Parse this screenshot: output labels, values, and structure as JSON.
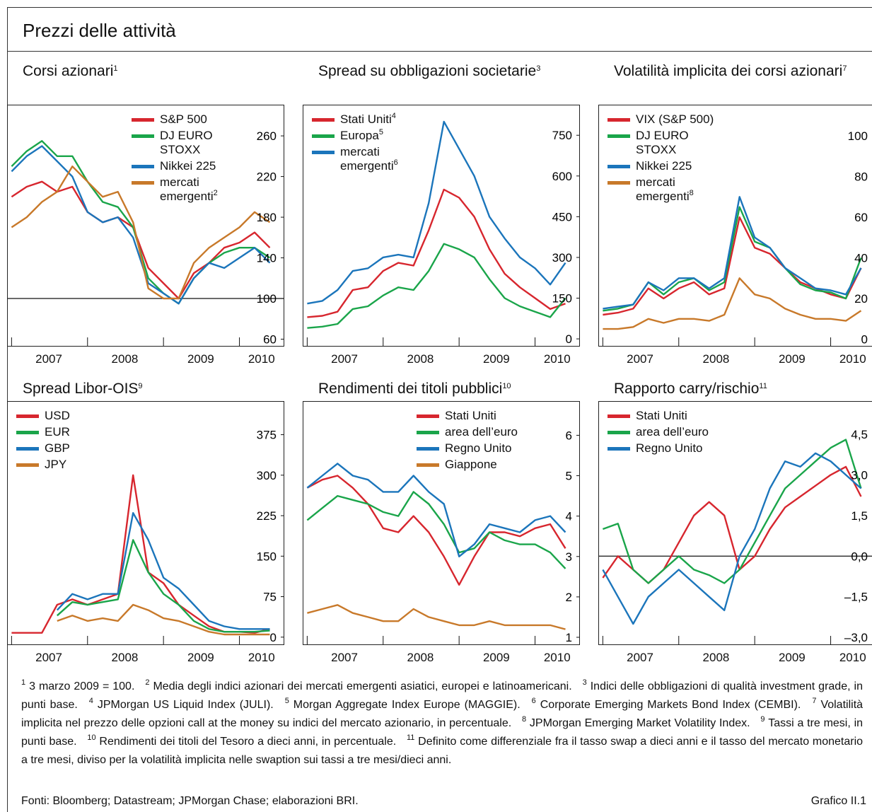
{
  "header": {
    "title": "Prezzi delle attività"
  },
  "chart_data": [
    {
      "type": "line",
      "title": "Corsi azionari",
      "title_ref": "1",
      "legend": "top-center",
      "x": [
        2007,
        2007.2,
        2007.4,
        2007.6,
        2007.8,
        2008,
        2008.2,
        2008.4,
        2008.6,
        2008.8,
        2009,
        2009.2,
        2009.4,
        2009.6,
        2009.8,
        2010,
        2010.2,
        2010.4
      ],
      "xlim": [
        2006.95,
        2010.6
      ],
      "xticks": [
        2007,
        2008,
        2009,
        2010
      ],
      "ylim": [
        52,
        290
      ],
      "yticks": [
        60,
        100,
        140,
        180,
        220,
        260
      ],
      "hline": 100,
      "series": [
        {
          "name": "S&P 500",
          "color": "#d7262e",
          "values": [
            200,
            210,
            215,
            205,
            210,
            185,
            175,
            180,
            170,
            130,
            115,
            100,
            125,
            135,
            150,
            155,
            165,
            150
          ]
        },
        {
          "name": "DJ EURO STOXX",
          "color": "#1aa54a",
          "values": [
            230,
            245,
            255,
            240,
            240,
            215,
            195,
            190,
            170,
            120,
            105,
            95,
            120,
            135,
            145,
            150,
            150,
            140
          ]
        },
        {
          "name": "Nikkei 225",
          "color": "#1b75bb",
          "values": [
            225,
            240,
            250,
            235,
            220,
            185,
            175,
            180,
            160,
            115,
            105,
            95,
            120,
            135,
            130,
            140,
            150,
            135
          ]
        },
        {
          "name": "mercati emergenti",
          "ref": "2",
          "color": "#c8792a",
          "values": [
            170,
            180,
            195,
            205,
            230,
            215,
            200,
            205,
            175,
            110,
            100,
            100,
            135,
            150,
            160,
            170,
            185,
            175
          ]
        }
      ]
    },
    {
      "type": "line",
      "title": "Spread su obbligazioni societarie",
      "title_ref": "3",
      "legend": "top-left",
      "x": [
        2007,
        2007.2,
        2007.4,
        2007.6,
        2007.8,
        2008,
        2008.2,
        2008.4,
        2008.6,
        2008.8,
        2009,
        2009.2,
        2009.4,
        2009.6,
        2009.8,
        2010,
        2010.2,
        2010.4
      ],
      "xlim": [
        2006.95,
        2010.6
      ],
      "xticks": [
        2007,
        2008,
        2009,
        2010
      ],
      "ylim": [
        -31,
        860
      ],
      "yticks": [
        0,
        150,
        300,
        450,
        600,
        750
      ],
      "series": [
        {
          "name": "Stati Uniti",
          "ref": "4",
          "color": "#d7262e",
          "values": [
            80,
            85,
            100,
            180,
            190,
            250,
            280,
            270,
            400,
            550,
            520,
            450,
            330,
            240,
            190,
            150,
            110,
            130
          ]
        },
        {
          "name": "Europa",
          "ref": "5",
          "color": "#1aa54a",
          "values": [
            40,
            45,
            55,
            110,
            120,
            160,
            190,
            180,
            250,
            350,
            330,
            300,
            220,
            150,
            120,
            100,
            80,
            150
          ]
        },
        {
          "name": "mercati emergenti",
          "ref": "6",
          "color": "#1b75bb",
          "values": [
            130,
            140,
            180,
            250,
            260,
            300,
            310,
            300,
            500,
            800,
            700,
            600,
            450,
            370,
            300,
            260,
            200,
            280
          ]
        }
      ]
    },
    {
      "type": "line",
      "title": "Volatilità implicita dei corsi azionari",
      "title_ref": "7",
      "legend": "top-left",
      "x": [
        2007,
        2007.2,
        2007.4,
        2007.6,
        2007.8,
        2008,
        2008.2,
        2008.4,
        2008.6,
        2008.8,
        2009,
        2009.2,
        2009.4,
        2009.6,
        2009.8,
        2010,
        2010.2,
        2010.4
      ],
      "xlim": [
        2006.95,
        2010.6
      ],
      "xticks": [
        2007,
        2008,
        2009,
        2010
      ],
      "ylim": [
        -4,
        115
      ],
      "yticks": [
        0,
        20,
        40,
        60,
        80,
        100
      ],
      "series": [
        {
          "name": "VIX (S&P 500)",
          "color": "#d7262e",
          "values": [
            12,
            13,
            15,
            25,
            20,
            25,
            28,
            22,
            25,
            60,
            45,
            42,
            35,
            28,
            25,
            22,
            20,
            35
          ]
        },
        {
          "name": "DJ EURO STOXX",
          "color": "#1aa54a",
          "values": [
            14,
            15,
            17,
            28,
            22,
            28,
            30,
            24,
            28,
            65,
            48,
            45,
            35,
            27,
            24,
            23,
            20,
            40
          ]
        },
        {
          "name": "Nikkei 225",
          "color": "#1b75bb",
          "values": [
            15,
            16,
            17,
            28,
            24,
            30,
            30,
            25,
            30,
            70,
            50,
            45,
            35,
            30,
            25,
            24,
            22,
            35
          ]
        },
        {
          "name": "mercati emergenti",
          "ref": "8",
          "color": "#c8792a",
          "values": [
            5,
            5,
            6,
            10,
            8,
            10,
            10,
            9,
            12,
            30,
            22,
            20,
            15,
            12,
            10,
            10,
            9,
            14
          ]
        }
      ]
    },
    {
      "type": "line",
      "title": "Spread Libor-OIS",
      "title_ref": "9",
      "legend": "top-left",
      "x": [
        2007,
        2007.2,
        2007.4,
        2007.6,
        2007.8,
        2008,
        2008.2,
        2008.4,
        2008.6,
        2008.8,
        2009,
        2009.2,
        2009.4,
        2009.6,
        2009.8,
        2010,
        2010.2,
        2010.4
      ],
      "xlim": [
        2006.95,
        2010.6
      ],
      "xticks": [
        2007,
        2008,
        2009,
        2010
      ],
      "ylim": [
        -16,
        436
      ],
      "yticks": [
        0,
        75,
        150,
        225,
        300,
        375
      ],
      "series": [
        {
          "name": "USD",
          "color": "#d7262e",
          "values": [
            8,
            8,
            8,
            60,
            70,
            60,
            70,
            80,
            300,
            120,
            100,
            60,
            40,
            20,
            10,
            10,
            8,
            15
          ]
        },
        {
          "name": "EUR",
          "color": "#1aa54a",
          "values": [
            null,
            null,
            null,
            40,
            65,
            60,
            65,
            70,
            180,
            120,
            80,
            60,
            30,
            15,
            10,
            10,
            10,
            12
          ]
        },
        {
          "name": "GBP",
          "color": "#1b75bb",
          "values": [
            null,
            null,
            null,
            50,
            80,
            70,
            80,
            80,
            230,
            180,
            110,
            90,
            60,
            30,
            20,
            15,
            15,
            15
          ]
        },
        {
          "name": "JPY",
          "color": "#c8792a",
          "values": [
            null,
            null,
            null,
            30,
            40,
            30,
            35,
            30,
            60,
            50,
            35,
            30,
            20,
            10,
            5,
            5,
            5,
            5
          ]
        }
      ]
    },
    {
      "type": "line",
      "title": "Rendimenti dei titoli pubblici",
      "title_ref": "10",
      "legend": "top-right",
      "x": [
        2007,
        2007.2,
        2007.4,
        2007.6,
        2007.8,
        2008,
        2008.2,
        2008.4,
        2008.6,
        2008.8,
        2009,
        2009.2,
        2009.4,
        2009.6,
        2009.8,
        2010,
        2010.2,
        2010.4
      ],
      "xlim": [
        2006.95,
        2010.6
      ],
      "xticks": [
        2007,
        2008,
        2009,
        2010
      ],
      "ylim": [
        0.79,
        6.83
      ],
      "yticks": [
        1,
        2,
        3,
        4,
        5,
        6
      ],
      "series": [
        {
          "name": "Stati Uniti",
          "color": "#d7262e",
          "values": [
            4.7,
            4.9,
            5.0,
            4.7,
            4.3,
            3.7,
            3.6,
            4.0,
            3.6,
            3.0,
            2.3,
            3.0,
            3.6,
            3.6,
            3.5,
            3.7,
            3.8,
            3.2
          ]
        },
        {
          "name": "area dell’euro",
          "color": "#1aa54a",
          "values": [
            3.9,
            4.2,
            4.5,
            4.4,
            4.3,
            4.1,
            4.0,
            4.6,
            4.3,
            3.8,
            3.1,
            3.2,
            3.6,
            3.4,
            3.3,
            3.3,
            3.1,
            2.7
          ]
        },
        {
          "name": "Regno Unito",
          "color": "#1b75bb",
          "values": [
            4.7,
            5.0,
            5.3,
            5.0,
            4.9,
            4.6,
            4.6,
            5.0,
            4.6,
            4.3,
            3.0,
            3.3,
            3.8,
            3.7,
            3.6,
            3.9,
            4.0,
            3.6
          ]
        },
        {
          "name": "Giappone",
          "color": "#c8792a",
          "values": [
            1.6,
            1.7,
            1.8,
            1.6,
            1.5,
            1.4,
            1.4,
            1.7,
            1.5,
            1.4,
            1.3,
            1.3,
            1.4,
            1.3,
            1.3,
            1.3,
            1.3,
            1.2
          ]
        }
      ]
    },
    {
      "type": "line",
      "title": "Rapporto carry/rischio",
      "title_ref": "11",
      "legend": "top-left",
      "x": [
        2007,
        2007.2,
        2007.4,
        2007.6,
        2007.8,
        2008,
        2008.2,
        2008.4,
        2008.6,
        2008.8,
        2009,
        2009.2,
        2009.4,
        2009.6,
        2009.8,
        2010,
        2010.2,
        2010.4
      ],
      "xlim": [
        2006.95,
        2010.6
      ],
      "xticks": [
        2007,
        2008,
        2009,
        2010
      ],
      "ylim": [
        -3.31,
        5.7
      ],
      "hline": 0,
      "yticks": [
        {
          "value": -3,
          "label": "–3,0"
        },
        {
          "value": -1.5,
          "label": "–1,5"
        },
        {
          "value": 0,
          "label": "0,0"
        },
        {
          "value": 1.5,
          "label": "1,5"
        },
        {
          "value": 3,
          "label": "3,0"
        },
        {
          "value": 4.5,
          "label": "4,5"
        }
      ],
      "series": [
        {
          "name": "Stati Uniti",
          "color": "#d7262e",
          "values": [
            -0.8,
            0.0,
            -0.5,
            -1.0,
            -0.5,
            0.5,
            1.5,
            2.0,
            1.5,
            -0.5,
            0.0,
            1.0,
            1.8,
            2.2,
            2.6,
            3.0,
            3.3,
            2.2
          ]
        },
        {
          "name": "area dell’euro",
          "color": "#1aa54a",
          "values": [
            1.0,
            1.2,
            -0.5,
            -1.0,
            -0.5,
            0.0,
            -0.5,
            -0.7,
            -1.0,
            -0.5,
            0.5,
            1.5,
            2.5,
            3.0,
            3.5,
            4.0,
            4.3,
            2.5
          ]
        },
        {
          "name": "Regno Unito",
          "color": "#1b75bb",
          "values": [
            -0.5,
            -1.5,
            -2.5,
            -1.5,
            -1.0,
            -0.5,
            -1.0,
            -1.5,
            -2.0,
            0.0,
            1.0,
            2.5,
            3.5,
            3.3,
            3.8,
            3.5,
            3.0,
            2.5
          ]
        }
      ]
    }
  ],
  "notes": [
    {
      "ref": "1",
      "text": "3 marzo 2009 = 100."
    },
    {
      "ref": "2",
      "text": "Media degli indici azionari dei mercati emergenti asiatici, europei e latinoamericani."
    },
    {
      "ref": "3",
      "text": "Indici delle obbligazioni di qualità investment grade, in punti base."
    },
    {
      "ref": "4",
      "text": "JPMorgan US Liquid Index (JULI)."
    },
    {
      "ref": "5",
      "text": "Morgan Aggregate Index Europe (MAGGIE)."
    },
    {
      "ref": "6",
      "text": "Corporate Emerging Markets Bond Index (CEMBI)."
    },
    {
      "ref": "7",
      "text": "Volatilità implicita nel prezzo delle opzioni call at the money su indici del mercato azionario, in percentuale."
    },
    {
      "ref": "8",
      "text": "JPMorgan Emerging Market Volatility Index."
    },
    {
      "ref": "9",
      "text": "Tassi a tre mesi, in punti base."
    },
    {
      "ref": "10",
      "text": "Rendimenti dei titoli del Tesoro a dieci anni, in percentuale."
    },
    {
      "ref": "11",
      "text": "Definito come differenziale fra il tasso swap a dieci anni e il tasso del mercato monetario a tre mesi, diviso per la volatilità implicita nelle swaption sui tassi a tre mesi/dieci anni."
    }
  ],
  "sources": "Fonti: Bloomberg; Datastream; JPMorgan Chase; elaborazioni BRI.",
  "figure_id": "Grafico II.1"
}
